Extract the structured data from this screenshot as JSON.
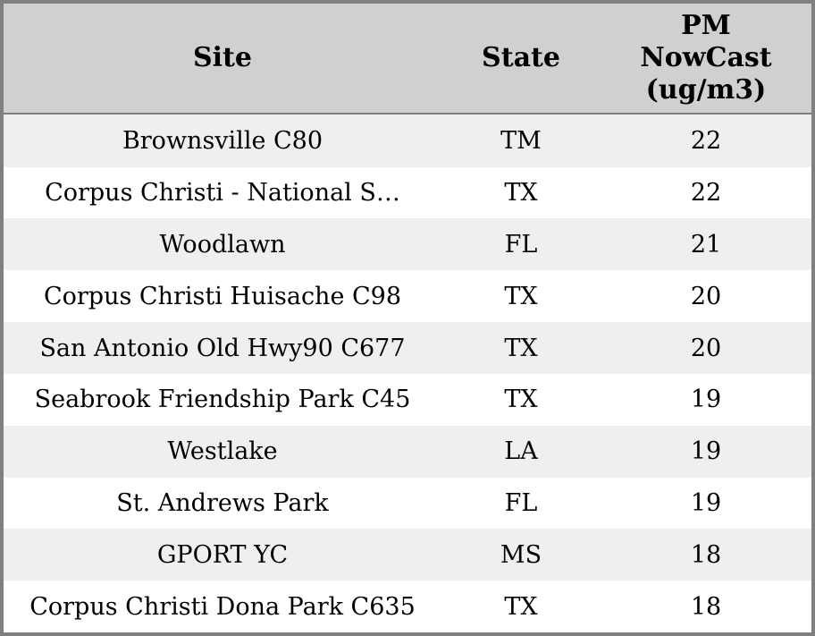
{
  "chart_data": {
    "type": "table",
    "columns": [
      {
        "key": "site",
        "label": "Site"
      },
      {
        "key": "state",
        "label": "State"
      },
      {
        "key": "pm_nowcast",
        "label": "PM NowCast (ug/m3)"
      }
    ],
    "rows": [
      {
        "site": "Brownsville C80",
        "state": "TM",
        "pm_nowcast": 22
      },
      {
        "site": "Corpus Christi - National S…",
        "state": "TX",
        "pm_nowcast": 22
      },
      {
        "site": "Woodlawn",
        "state": "FL",
        "pm_nowcast": 21
      },
      {
        "site": "Corpus Christi Huisache C98",
        "state": "TX",
        "pm_nowcast": 20
      },
      {
        "site": "San Antonio Old Hwy90 C677",
        "state": "TX",
        "pm_nowcast": 20
      },
      {
        "site": "Seabrook Friendship Park C45",
        "state": "TX",
        "pm_nowcast": 19
      },
      {
        "site": "Westlake",
        "state": "LA",
        "pm_nowcast": 19
      },
      {
        "site": "St. Andrews Park",
        "state": "FL",
        "pm_nowcast": 19
      },
      {
        "site": "GPORT YC",
        "state": "MS",
        "pm_nowcast": 18
      },
      {
        "site": "Corpus Christi Dona Park C635",
        "state": "TX",
        "pm_nowcast": 18
      }
    ],
    "layout": {
      "legend": "none",
      "grid": "off",
      "alternating_rows": true
    }
  },
  "colors": {
    "header_bg": "#d0d0d0",
    "row_alt_bg": "#efefef",
    "row_bg": "#ffffff",
    "border": "#808080",
    "text": "#000000"
  }
}
